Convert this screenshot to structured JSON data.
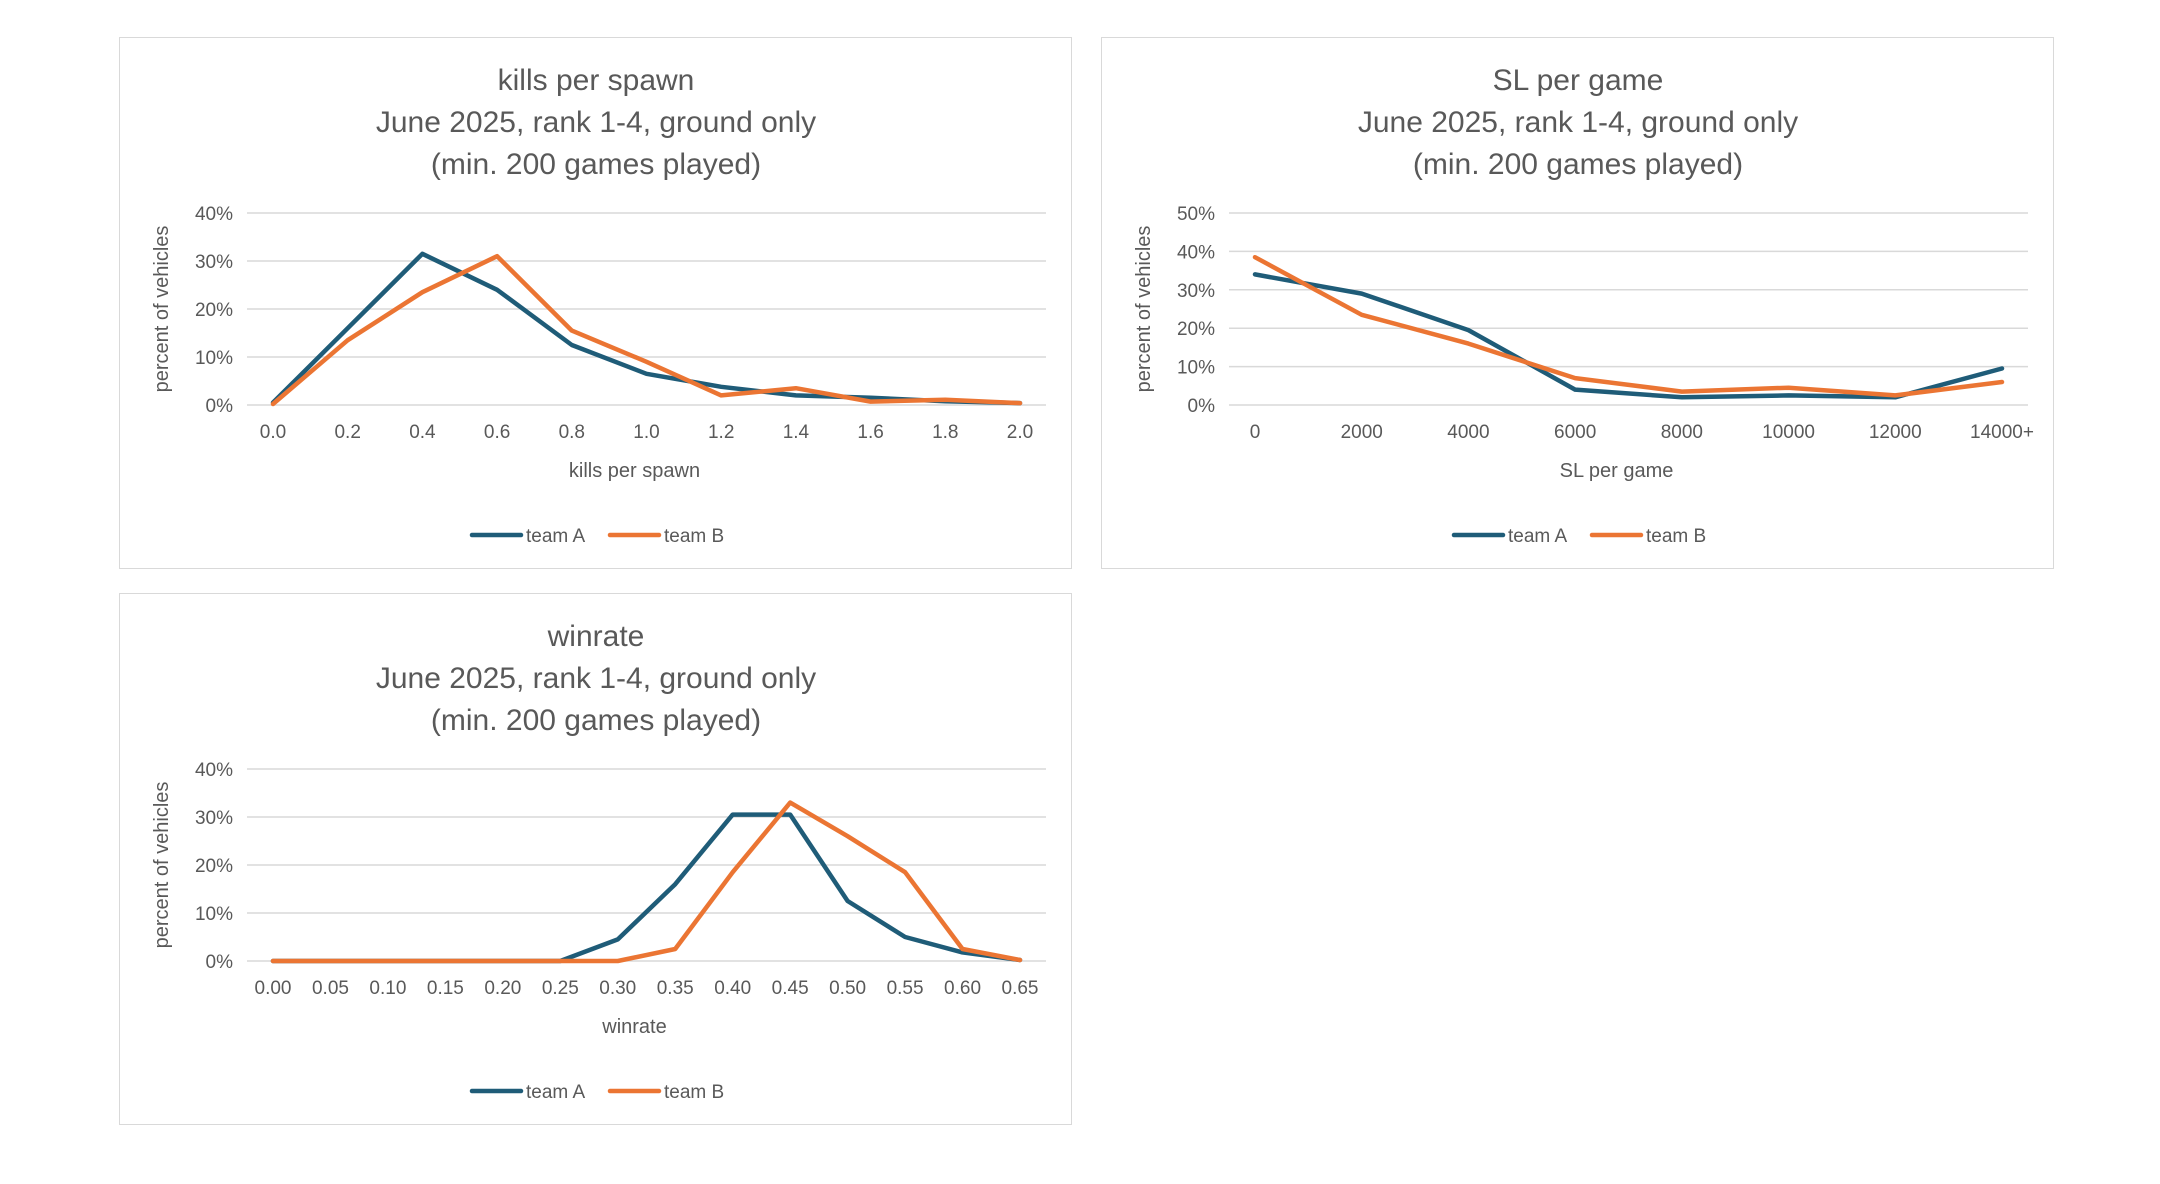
{
  "colors": {
    "team_a": "#1f5c78",
    "team_b": "#eb7533"
  },
  "chart_data": [
    {
      "type": "line",
      "title": "kills per spawn",
      "subtitle": [
        "June 2025, rank 1-4, ground only",
        "(min. 200 games played)"
      ],
      "xlabel": "kills per spawn",
      "ylabel": "percent of vehicles",
      "categories": [
        "0.0",
        "0.2",
        "0.4",
        "0.6",
        "0.8",
        "1.0",
        "1.2",
        "1.4",
        "1.6",
        "1.8",
        "2.0"
      ],
      "yticks": [
        "0%",
        "10%",
        "20%",
        "30%",
        "40%"
      ],
      "ylim": [
        0,
        40
      ],
      "grid": true,
      "legend": "bottom",
      "series": [
        {
          "name": "team A",
          "x": [
            0,
            0.2,
            0.4,
            0.6,
            0.8,
            1.0,
            1.2,
            1.4,
            1.6,
            1.8,
            2.0
          ],
          "values": [
            0.5,
            16,
            31.5,
            24,
            12.5,
            6.5,
            3.8,
            2,
            1.5,
            0.8,
            0.4
          ]
        },
        {
          "name": "team B",
          "x": [
            0,
            0.2,
            0.4,
            0.6,
            0.8,
            1.0,
            1.2,
            1.4,
            1.6,
            1.8,
            2.0
          ],
          "values": [
            0.2,
            13.5,
            23.5,
            31,
            15.5,
            9,
            2,
            3.5,
            0.7,
            1.1,
            0.4
          ]
        }
      ]
    },
    {
      "type": "line",
      "title": "SL per game",
      "subtitle": [
        "June 2025, rank 1-4, ground only",
        "(min. 200 games played)"
      ],
      "xlabel": "SL per game",
      "ylabel": "percent of vehicles",
      "categories": [
        "0",
        "2000",
        "4000",
        "6000",
        "8000",
        "10000",
        "12000",
        "14000+"
      ],
      "yticks": [
        "0%",
        "10%",
        "20%",
        "30%",
        "40%",
        "50%"
      ],
      "ylim": [
        0,
        50
      ],
      "grid": true,
      "legend": "bottom",
      "series": [
        {
          "name": "team A",
          "x": [
            0,
            2000,
            4000,
            6000,
            8000,
            10000,
            12000,
            14000
          ],
          "values": [
            34,
            29,
            19.5,
            4,
            2,
            2.5,
            2,
            9.5
          ]
        },
        {
          "name": "team B",
          "x": [
            0,
            2000,
            4000,
            6000,
            8000,
            10000,
            12000,
            14000
          ],
          "values": [
            38.5,
            23.5,
            16,
            7,
            3.5,
            4.5,
            2.5,
            6
          ]
        }
      ]
    },
    {
      "type": "line",
      "title": "winrate",
      "subtitle": [
        "June 2025, rank 1-4, ground only",
        "(min. 200 games played)"
      ],
      "xlabel": "winrate",
      "ylabel": "percent of vehicles",
      "categories": [
        "0.00",
        "0.05",
        "0.10",
        "0.15",
        "0.20",
        "0.25",
        "0.30",
        "0.35",
        "0.40",
        "0.45",
        "0.50",
        "0.55",
        "0.60",
        "0.65"
      ],
      "yticks": [
        "0%",
        "10%",
        "20%",
        "30%",
        "40%"
      ],
      "ylim": [
        0,
        40
      ],
      "grid": true,
      "legend": "bottom",
      "series": [
        {
          "name": "team A",
          "x": [
            0.0,
            0.05,
            0.1,
            0.15,
            0.2,
            0.25,
            0.3,
            0.35,
            0.4,
            0.45,
            0.5,
            0.55,
            0.6,
            0.65
          ],
          "values": [
            0,
            0,
            0,
            0,
            0,
            0,
            4.5,
            16,
            30.5,
            30.5,
            12.5,
            5,
            1.8,
            0.2
          ]
        },
        {
          "name": "team B",
          "x": [
            0.0,
            0.05,
            0.1,
            0.15,
            0.2,
            0.25,
            0.3,
            0.35,
            0.4,
            0.45,
            0.5,
            0.55,
            0.6,
            0.65
          ],
          "values": [
            0,
            0,
            0,
            0,
            0,
            0,
            0,
            2.5,
            18.5,
            33,
            26,
            18.5,
            2.5,
            0.2
          ]
        }
      ]
    }
  ]
}
